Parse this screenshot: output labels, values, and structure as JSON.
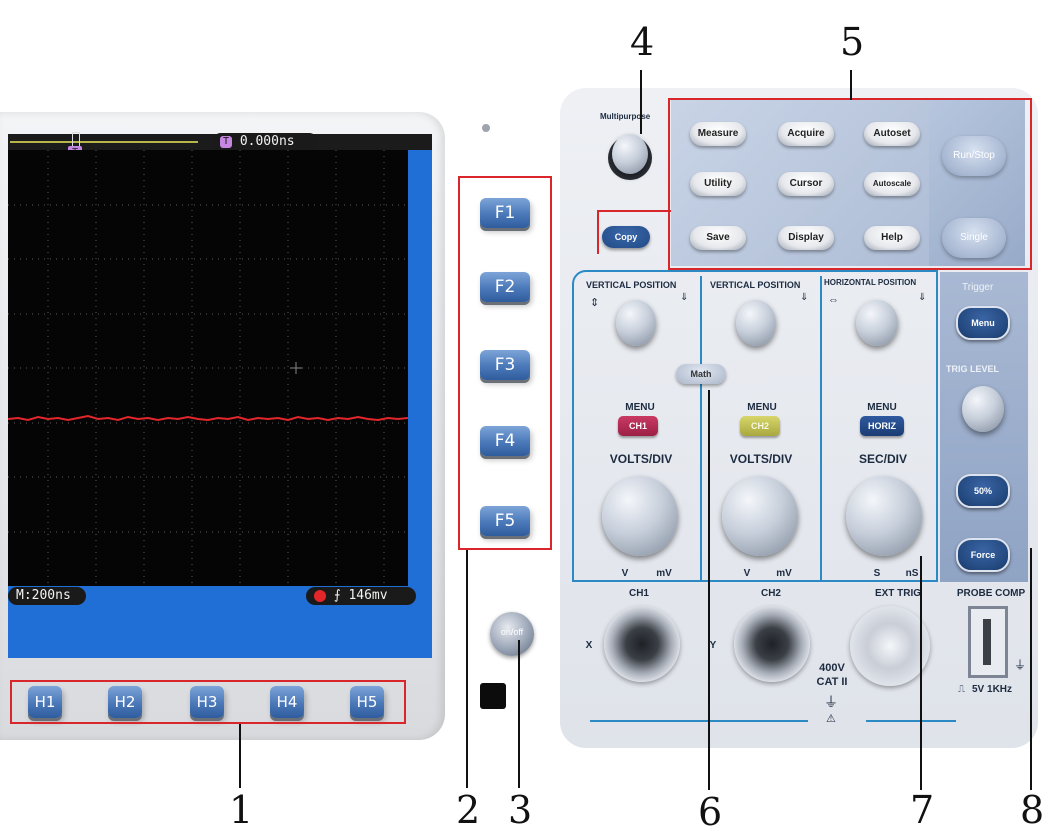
{
  "callouts": {
    "c1": "1",
    "c2": "2",
    "c3": "3",
    "c4": "4",
    "c5": "5",
    "c6": "6",
    "c7": "7",
    "c8": "8"
  },
  "screen": {
    "time_offset": "0.000ns",
    "timebase": "M:200ns",
    "trigger_level": "146mv",
    "trigger_marker": "T"
  },
  "f_keys": [
    "F1",
    "F2",
    "F3",
    "F4",
    "F5"
  ],
  "h_keys": [
    "H1",
    "H2",
    "H3",
    "H4",
    "H5"
  ],
  "power_button": "on/off",
  "top_panel": {
    "multipurpose": "Multipurpose",
    "copy": "Copy",
    "buttons": [
      "Measure",
      "Acquire",
      "Autoset",
      "Utility",
      "Cursor",
      "Autoscale",
      "Save",
      "Display",
      "Help"
    ],
    "run_stop": "Run/Stop",
    "single": "Single"
  },
  "vertical": {
    "ch1_position": "VERTICAL  POSITION",
    "ch2_position": "VERTICAL  POSITION",
    "math": "Math",
    "menu_label": "MENU",
    "ch1_button": "CH1",
    "ch2_button": "CH2",
    "volts_div": "VOLTS/DIV",
    "unit_v": "V",
    "unit_mv": "mV"
  },
  "horizontal": {
    "position": "HORIZONTAL POSITION",
    "menu_label": "MENU",
    "horiz_button": "HORIZ",
    "sec_div": "SEC/DIV",
    "unit_s": "S",
    "unit_ns": "nS"
  },
  "trigger": {
    "title": "Trigger",
    "menu": "Menu",
    "trig_level": "TRIG LEVEL",
    "fifty": "50%",
    "force": "Force"
  },
  "connectors": {
    "ch1": "CH1",
    "ch2": "CH2",
    "x": "X",
    "y": "Y",
    "ext_trig": "EXT TRIG",
    "rating": "400V",
    "category": "CAT II",
    "probe_comp": "PROBE COMP",
    "probe_spec": "5V 1KHz"
  },
  "colors": {
    "callout_box": "#d8262a",
    "screen_bg": "#1f6fd6",
    "trace": "#e3262a"
  }
}
